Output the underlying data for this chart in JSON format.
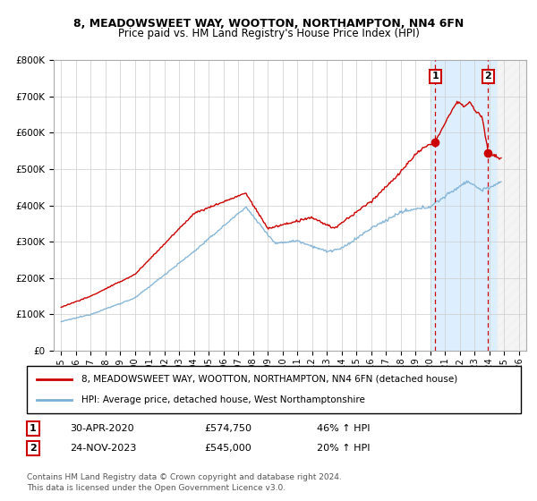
{
  "title": "8, MEADOWSWEET WAY, WOOTTON, NORTHAMPTON, NN4 6FN",
  "subtitle": "Price paid vs. HM Land Registry's House Price Index (HPI)",
  "ylabel_ticks": [
    "£0",
    "£100K",
    "£200K",
    "£300K",
    "£400K",
    "£500K",
    "£600K",
    "£700K",
    "£800K"
  ],
  "ytick_values": [
    0,
    100000,
    200000,
    300000,
    400000,
    500000,
    600000,
    700000,
    800000
  ],
  "ylim": [
    0,
    800000
  ],
  "xlim_start": 1994.5,
  "xlim_end": 2026.5,
  "sale1_x": 2020.33,
  "sale1_y": 574750,
  "sale1_label": "1",
  "sale1_date": "30-APR-2020",
  "sale1_price": "£574,750",
  "sale1_hpi": "46% ↑ HPI",
  "sale2_x": 2023.92,
  "sale2_y": 545000,
  "sale2_label": "2",
  "sale2_date": "24-NOV-2023",
  "sale2_price": "£545,000",
  "sale2_hpi": "20% ↑ HPI",
  "red_line_color": "#cc0000",
  "blue_line_color": "#7bafd4",
  "hatch_start": 2024.5,
  "shade_start": 2020.0,
  "shade_end": 2024.5,
  "shade_color": "#ddeeff",
  "footnote": "Contains HM Land Registry data © Crown copyright and database right 2024.\nThis data is licensed under the Open Government Licence v3.0.",
  "legend1": "8, MEADOWSWEET WAY, WOOTTON, NORTHAMPTON, NN4 6FN (detached house)",
  "legend2": "HPI: Average price, detached house, West Northamptonshire",
  "xtick_years": [
    1995,
    1996,
    1997,
    1998,
    1999,
    2000,
    2001,
    2002,
    2003,
    2004,
    2005,
    2006,
    2007,
    2008,
    2009,
    2010,
    2011,
    2012,
    2013,
    2014,
    2015,
    2016,
    2017,
    2018,
    2019,
    2020,
    2021,
    2022,
    2023,
    2024,
    2025,
    2026
  ]
}
